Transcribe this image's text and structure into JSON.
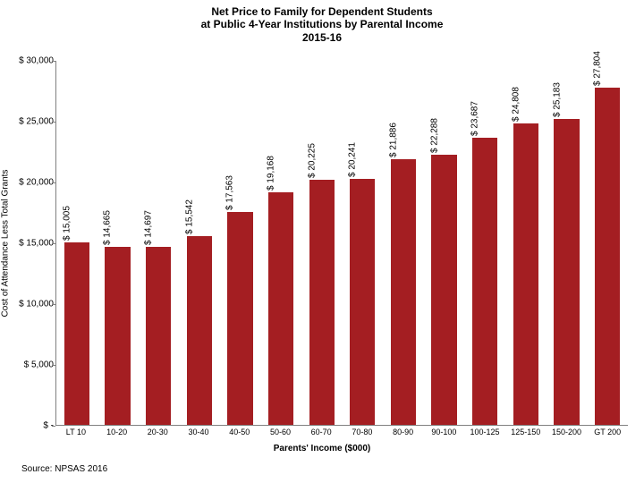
{
  "chart": {
    "type": "bar",
    "title_lines": [
      "Net Price to Family for Dependent Students",
      "at Public 4-Year Institutions by Parental Income",
      "2015-16"
    ],
    "title_fontsize": 12,
    "y_axis_title": "Cost of Attendance Less Total Grants",
    "x_axis_title": "Parents' Income ($000)",
    "source": "Source: NPSAS 2016",
    "y_min": 0,
    "y_max": 30000,
    "y_tick_step": 5000,
    "y_tick_labels": [
      "$ -",
      "$ 5,000",
      "$ 10,000",
      "$ 15,000",
      "$ 20,000",
      "$ 25,000",
      "$ 30,000"
    ],
    "bar_color": "#a41e22",
    "border_color": "#808080",
    "background_color": "#ffffff",
    "value_label_fontsize": 10,
    "axis_label_fontsize": 10,
    "tick_fontsize": 10,
    "bar_width": 0.62,
    "categories": [
      "LT 10",
      "10-20",
      "20-30",
      "30-40",
      "40-50",
      "50-60",
      "60-70",
      "70-80",
      "80-90",
      "90-100",
      "100-125",
      "125-150",
      "150-200",
      "GT 200"
    ],
    "values": [
      15005,
      14665,
      14697,
      15542,
      17563,
      19168,
      20225,
      20241,
      21886,
      22288,
      23687,
      24808,
      25183,
      27804
    ],
    "value_labels": [
      "$ 15,005",
      "$ 14,665",
      "$ 14,697",
      "$ 15,542",
      "$ 17,563",
      "$ 19,168",
      "$ 20,225",
      "$ 20,241",
      "$ 21,886",
      "$ 22,288",
      "$ 23,687",
      "$ 24,808",
      "$ 25,183",
      "$ 27,804"
    ]
  }
}
